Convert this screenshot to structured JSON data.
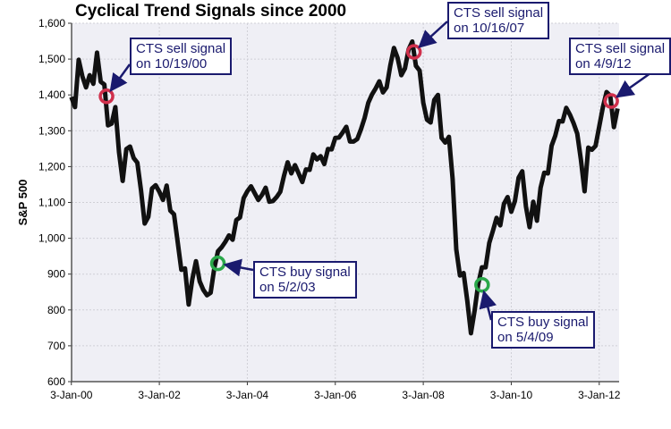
{
  "chart_data": {
    "type": "line",
    "title": "Cyclical Trend Signals since 2000",
    "xlabel": "",
    "ylabel": "S&P 500",
    "ylim": [
      600,
      1600
    ],
    "yticks": [
      "600",
      "700",
      "800",
      "900",
      "1,000",
      "1,100",
      "1,200",
      "1,300",
      "1,400",
      "1,500",
      "1,600"
    ],
    "xticks": [
      "3-Jan-00",
      "3-Jan-02",
      "3-Jan-04",
      "3-Jan-06",
      "3-Jan-08",
      "3-Jan-10",
      "3-Jan-12"
    ],
    "grid": true,
    "series_color": "#111111",
    "x_start": "2000-01",
    "values": [
      1394,
      1366,
      1498,
      1452,
      1421,
      1455,
      1431,
      1518,
      1437,
      1429,
      1315,
      1320,
      1366,
      1240,
      1160,
      1249,
      1256,
      1224,
      1211,
      1134,
      1041,
      1060,
      1139,
      1148,
      1130,
      1107,
      1147,
      1077,
      1067,
      990,
      912,
      916,
      815,
      886,
      936,
      880,
      856,
      841,
      848,
      917,
      964,
      975,
      990,
      1008,
      996,
      1051,
      1058,
      1112,
      1131,
      1145,
      1126,
      1107,
      1121,
      1141,
      1102,
      1104,
      1115,
      1130,
      1174,
      1212,
      1181,
      1204,
      1181,
      1157,
      1192,
      1191,
      1234,
      1220,
      1229,
      1207,
      1249,
      1248,
      1280,
      1281,
      1295,
      1311,
      1270,
      1270,
      1277,
      1304,
      1336,
      1378,
      1401,
      1418,
      1438,
      1407,
      1421,
      1482,
      1531,
      1503,
      1455,
      1474,
      1527,
      1549,
      1481,
      1468,
      1378,
      1331,
      1323,
      1386,
      1400,
      1280,
      1267,
      1283,
      1166,
      969,
      896,
      903,
      826,
      735,
      798,
      873,
      919,
      919,
      987,
      1021,
      1057,
      1036,
      1096,
      1115,
      1074,
      1104,
      1169,
      1187,
      1089,
      1031,
      1102,
      1049,
      1141,
      1183,
      1181,
      1258,
      1286,
      1327,
      1326,
      1364,
      1345,
      1321,
      1292,
      1219,
      1131,
      1253,
      1247,
      1258,
      1312,
      1366,
      1408,
      1398,
      1310,
      1362
    ],
    "signals": [
      {
        "type": "sell",
        "date": "2000-10-19",
        "value": 1396,
        "label": "CTS sell signal\non 10/19/00",
        "color": "#d0304c"
      },
      {
        "type": "buy",
        "date": "2003-05-02",
        "value": 930,
        "label": "CTS buy signal\non 5/2/03",
        "color": "#2aa84a"
      },
      {
        "type": "sell",
        "date": "2007-10-16",
        "value": 1520,
        "label": "CTS sell signal\non 10/16/07",
        "color": "#d0304c"
      },
      {
        "type": "buy",
        "date": "2009-05-04",
        "value": 870,
        "label": "CTS buy signal\non 5/4/09",
        "color": "#2aa84a"
      },
      {
        "type": "sell",
        "date": "2012-04-09",
        "value": 1383,
        "label": "CTS sell signal\non 4/9/12",
        "color": "#d0304c"
      }
    ]
  }
}
